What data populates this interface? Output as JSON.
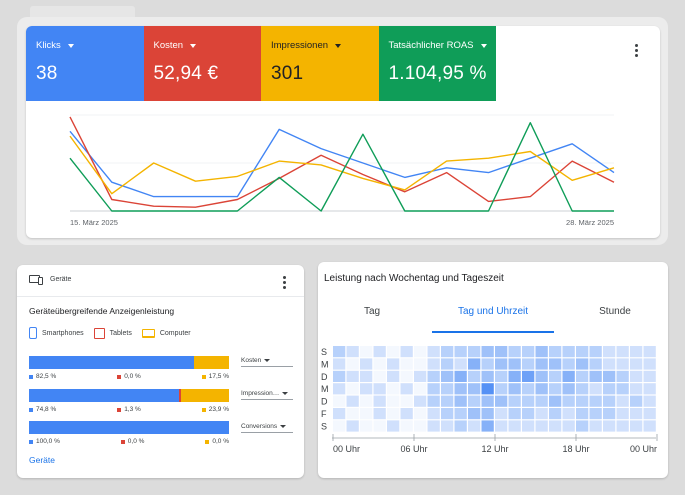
{
  "summary": {
    "metrics": [
      {
        "label": "Klicks",
        "value": "38",
        "color": "#4285f4"
      },
      {
        "label": "Kosten",
        "value": "52,94 €",
        "color": "#db4437"
      },
      {
        "label": "Impressionen",
        "value": "301",
        "color": "#f4b400"
      },
      {
        "label": "Tatsächlicher ROAS",
        "value": "1.104,95 %",
        "color": "#0f9d58"
      }
    ],
    "date_start": "15. März 2025",
    "date_end": "28. März 2025"
  },
  "chart_data": {
    "type": "line",
    "x": [
      "15. März 2025",
      "",
      "",
      "",
      "",
      "",
      "",
      "",
      "",
      "",
      "",
      "",
      "",
      "28. März 2025"
    ],
    "ylim": [
      0,
      1
    ],
    "grid": true,
    "series": [
      {
        "name": "Klicks",
        "color": "#4285f4",
        "values": [
          0.83,
          0.3,
          0.15,
          0.15,
          0.15,
          0.85,
          0.65,
          0.5,
          0.35,
          0.45,
          0.4,
          0.55,
          0.7,
          0.4
        ]
      },
      {
        "name": "Kosten",
        "color": "#db4437",
        "values": [
          0.98,
          0.12,
          0.05,
          0.04,
          0.12,
          0.34,
          0.58,
          0.38,
          0.2,
          0.4,
          0.1,
          0.15,
          0.52,
          0.3
        ]
      },
      {
        "name": "Impressionen",
        "color": "#f4b400",
        "values": [
          0.78,
          0.18,
          0.5,
          0.31,
          0.36,
          0.52,
          0.48,
          0.34,
          0.22,
          0.52,
          0.55,
          0.62,
          0.32,
          0.45
        ]
      },
      {
        "name": "Tatsächlicher ROAS",
        "color": "#0f9d58",
        "values": [
          0.55,
          0.0,
          0.0,
          0.0,
          0.0,
          0.35,
          0.0,
          0.8,
          0.0,
          0.0,
          0.0,
          0.92,
          0.0,
          0.0
        ]
      }
    ]
  },
  "devices": {
    "header": "Geräte",
    "title": "Geräteübergreifende Anzeigenleistung",
    "legend": [
      "Smartphones",
      "Tablets",
      "Computer"
    ],
    "colors": {
      "phone": "#4285f4",
      "tablet": "#db4437",
      "computer": "#f4b400"
    },
    "rows": [
      {
        "metric": "Kosten",
        "shares": [
          82.5,
          0.0,
          17.5
        ],
        "labels": [
          "82,5 %",
          "0,0 %",
          "17,5 %"
        ]
      },
      {
        "metric": "Impression…",
        "shares": [
          74.8,
          1.3,
          23.9
        ],
        "labels": [
          "74,8 %",
          "1,3 %",
          "23,9 %"
        ]
      },
      {
        "metric": "Conversions",
        "shares": [
          100.0,
          0.0,
          0.0
        ],
        "labels": [
          "100,0 %",
          "0,0 %",
          "0,0 %"
        ]
      }
    ],
    "link": "Geräte"
  },
  "heatmap": {
    "title": "Leistung nach Wochentag und Tageszeit",
    "tabs": [
      "Tag",
      "Tag und Uhrzeit",
      "Stunde"
    ],
    "active_tab": 1,
    "days": [
      "S",
      "M",
      "D",
      "M",
      "D",
      "F",
      "S"
    ],
    "x_labels": [
      "00 Uhr",
      "06 Uhr",
      "12 Uhr",
      "18 Uhr",
      "00 Uhr"
    ],
    "base_color": "#4285f4",
    "intensity": [
      [
        2,
        1,
        0,
        1,
        0,
        1,
        0,
        1,
        2,
        2,
        2,
        3,
        3,
        2,
        2,
        3,
        2,
        2,
        2,
        2,
        1,
        1,
        1,
        1
      ],
      [
        1,
        0,
        1,
        0,
        1,
        0,
        0,
        1,
        2,
        1,
        4,
        2,
        3,
        3,
        2,
        3,
        3,
        2,
        3,
        2,
        1,
        1,
        1,
        1
      ],
      [
        2,
        1,
        1,
        0,
        1,
        0,
        1,
        2,
        3,
        4,
        2,
        3,
        2,
        4,
        5,
        3,
        2,
        4,
        2,
        3,
        3,
        2,
        1,
        1
      ],
      [
        1,
        0,
        1,
        1,
        0,
        1,
        0,
        2,
        2,
        3,
        3,
        6,
        2,
        3,
        2,
        3,
        2,
        3,
        2,
        1,
        2,
        2,
        1,
        1
      ],
      [
        0,
        1,
        0,
        1,
        0,
        0,
        1,
        2,
        2,
        3,
        2,
        3,
        3,
        2,
        2,
        2,
        3,
        2,
        2,
        2,
        2,
        1,
        2,
        1
      ],
      [
        1,
        0,
        0,
        1,
        0,
        1,
        0,
        1,
        2,
        2,
        3,
        3,
        1,
        2,
        2,
        1,
        2,
        1,
        2,
        2,
        2,
        1,
        1,
        1
      ],
      [
        0,
        1,
        0,
        0,
        1,
        0,
        0,
        1,
        1,
        2,
        1,
        4,
        1,
        1,
        1,
        1,
        1,
        1,
        2,
        1,
        1,
        1,
        1,
        1
      ]
    ]
  }
}
